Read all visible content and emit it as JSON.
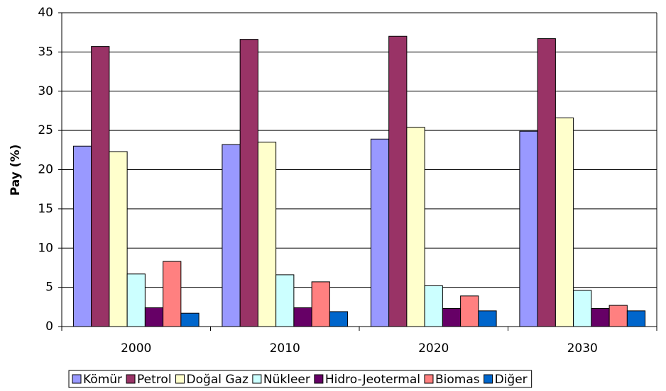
{
  "chart_data": {
    "type": "bar",
    "y_label": "Pay (%)",
    "categories": [
      "2000",
      "2010",
      "2020",
      "2030"
    ],
    "series": [
      {
        "name": "Kömür",
        "color": "#9999ff",
        "values": [
          23.0,
          23.2,
          23.9,
          24.9
        ]
      },
      {
        "name": "Petrol",
        "color": "#993366",
        "values": [
          35.7,
          36.6,
          37.0,
          36.7
        ]
      },
      {
        "name": "Doğal Gaz",
        "color": "#ffffcc",
        "values": [
          22.3,
          23.5,
          25.4,
          26.6
        ]
      },
      {
        "name": "Nükleer",
        "color": "#ccffff",
        "values": [
          6.7,
          6.6,
          5.2,
          4.6
        ]
      },
      {
        "name": "Hidro-Jeotermal",
        "color": "#660066",
        "values": [
          2.4,
          2.4,
          2.3,
          2.3
        ]
      },
      {
        "name": "Biomas",
        "color": "#ff8080",
        "values": [
          8.3,
          5.7,
          3.9,
          2.7
        ]
      },
      {
        "name": "Diğer",
        "color": "#0066cc",
        "values": [
          1.7,
          1.9,
          2.0,
          2.0
        ]
      }
    ],
    "ylim": [
      0,
      40
    ],
    "yticks": [
      0,
      5,
      10,
      15,
      20,
      25,
      30,
      35,
      40
    ],
    "grid": true,
    "legend": "bottom"
  }
}
